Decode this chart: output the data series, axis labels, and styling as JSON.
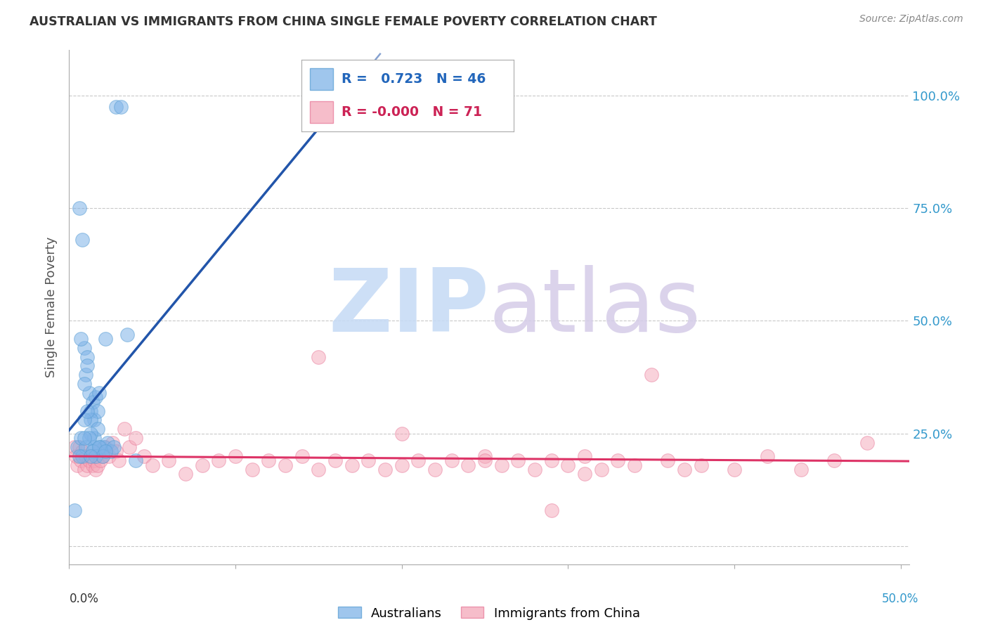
{
  "title": "AUSTRALIAN VS IMMIGRANTS FROM CHINA SINGLE FEMALE POVERTY CORRELATION CHART",
  "source": "Source: ZipAtlas.com",
  "ylabel": "Single Female Poverty",
  "blue_r": "0.723",
  "blue_n": "46",
  "pink_r": "-0.000",
  "pink_n": "71",
  "blue_color": "#7fb3e8",
  "blue_edge_color": "#5a9fd4",
  "pink_color": "#f4a7b9",
  "pink_edge_color": "#e87a9a",
  "blue_line_color": "#2255aa",
  "pink_line_color": "#dd3366",
  "background_color": "#ffffff",
  "grid_color": "#bbbbbb",
  "title_color": "#333333",
  "source_color": "#888888",
  "right_axis_color": "#3399cc",
  "ylabel_color": "#555555",
  "blue_legend_text_color": "#2266bb",
  "pink_legend_text_color": "#cc2255",
  "blue_scatter_x": [
    0.028,
    0.031,
    0.003,
    0.006,
    0.008,
    0.009,
    0.01,
    0.011,
    0.012,
    0.013,
    0.014,
    0.015,
    0.016,
    0.017,
    0.018,
    0.005,
    0.007,
    0.009,
    0.011,
    0.013,
    0.015,
    0.017,
    0.019,
    0.021,
    0.023,
    0.007,
    0.009,
    0.011,
    0.013,
    0.015,
    0.025,
    0.027,
    0.035,
    0.022,
    0.008,
    0.01,
    0.012,
    0.014,
    0.016,
    0.018,
    0.02,
    0.022,
    0.006,
    0.009,
    0.013,
    0.04
  ],
  "blue_scatter_y": [
    0.975,
    0.975,
    0.08,
    0.75,
    0.68,
    0.44,
    0.38,
    0.42,
    0.34,
    0.3,
    0.32,
    0.28,
    0.33,
    0.3,
    0.34,
    0.22,
    0.46,
    0.36,
    0.4,
    0.28,
    0.24,
    0.26,
    0.22,
    0.22,
    0.23,
    0.24,
    0.28,
    0.3,
    0.25,
    0.22,
    0.21,
    0.22,
    0.47,
    0.46,
    0.2,
    0.22,
    0.24,
    0.21,
    0.2,
    0.22,
    0.2,
    0.21,
    0.2,
    0.24,
    0.2,
    0.19
  ],
  "pink_scatter_x": [
    0.003,
    0.004,
    0.005,
    0.006,
    0.007,
    0.008,
    0.009,
    0.01,
    0.011,
    0.012,
    0.013,
    0.014,
    0.015,
    0.016,
    0.017,
    0.018,
    0.019,
    0.02,
    0.022,
    0.024,
    0.026,
    0.028,
    0.03,
    0.033,
    0.036,
    0.04,
    0.045,
    0.05,
    0.06,
    0.07,
    0.08,
    0.09,
    0.1,
    0.11,
    0.12,
    0.13,
    0.14,
    0.15,
    0.16,
    0.17,
    0.18,
    0.19,
    0.2,
    0.21,
    0.22,
    0.23,
    0.24,
    0.25,
    0.26,
    0.27,
    0.28,
    0.29,
    0.3,
    0.31,
    0.32,
    0.33,
    0.34,
    0.35,
    0.36,
    0.38,
    0.4,
    0.42,
    0.44,
    0.46,
    0.48,
    0.31,
    0.25,
    0.2,
    0.15,
    0.37,
    0.29
  ],
  "pink_scatter_y": [
    0.22,
    0.2,
    0.18,
    0.22,
    0.19,
    0.21,
    0.17,
    0.2,
    0.18,
    0.19,
    0.2,
    0.18,
    0.19,
    0.17,
    0.18,
    0.21,
    0.19,
    0.2,
    0.22,
    0.2,
    0.23,
    0.21,
    0.19,
    0.26,
    0.22,
    0.24,
    0.2,
    0.18,
    0.19,
    0.16,
    0.18,
    0.19,
    0.2,
    0.17,
    0.19,
    0.18,
    0.2,
    0.17,
    0.19,
    0.18,
    0.19,
    0.17,
    0.18,
    0.19,
    0.17,
    0.19,
    0.18,
    0.2,
    0.18,
    0.19,
    0.17,
    0.19,
    0.18,
    0.2,
    0.17,
    0.19,
    0.18,
    0.38,
    0.19,
    0.18,
    0.17,
    0.2,
    0.17,
    0.19,
    0.23,
    0.16,
    0.19,
    0.25,
    0.42,
    0.17,
    0.08
  ],
  "xlim_min": 0.0,
  "xlim_max": 0.505,
  "ylim_min": -0.04,
  "ylim_max": 1.1,
  "yticks": [
    0.0,
    0.25,
    0.5,
    0.75,
    1.0
  ],
  "ytick_labels_right": [
    "",
    "25.0%",
    "50.0%",
    "75.0%",
    "100.0%"
  ],
  "xtick_positions": [
    0.0,
    0.1,
    0.2,
    0.3,
    0.4,
    0.5
  ]
}
